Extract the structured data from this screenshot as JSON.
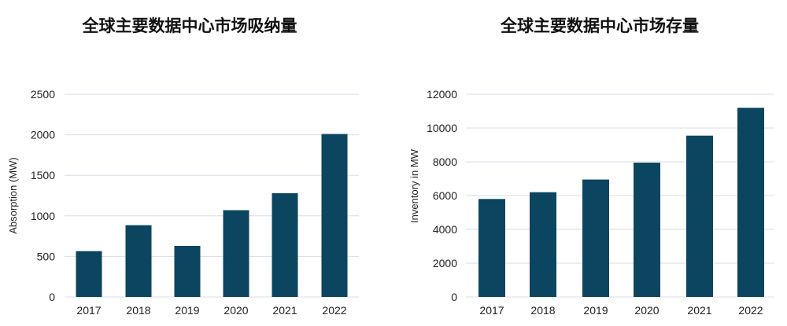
{
  "chart_data": [
    {
      "type": "bar",
      "title": "全球主要数据中心市场吸纳量",
      "xlabel": "",
      "ylabel": "Absorption (MW)",
      "categories": [
        "2017",
        "2018",
        "2019",
        "2020",
        "2021",
        "2022"
      ],
      "values": [
        565,
        885,
        630,
        1070,
        1280,
        2010
      ],
      "ylim": [
        0,
        2500
      ],
      "yticks": [
        0,
        500,
        1000,
        1500,
        2000,
        2500
      ],
      "grid": true,
      "bar_color": "#0b4560"
    },
    {
      "type": "bar",
      "title": "全球主要数据中心市场存量",
      "xlabel": "",
      "ylabel": "Inventory in MW",
      "categories": [
        "2017",
        "2018",
        "2019",
        "2020",
        "2021",
        "2022"
      ],
      "values": [
        5800,
        6200,
        6950,
        7950,
        9550,
        11200
      ],
      "ylim": [
        0,
        12000
      ],
      "yticks": [
        0,
        2000,
        4000,
        6000,
        8000,
        10000,
        12000
      ],
      "grid": true,
      "bar_color": "#0b4560"
    }
  ]
}
